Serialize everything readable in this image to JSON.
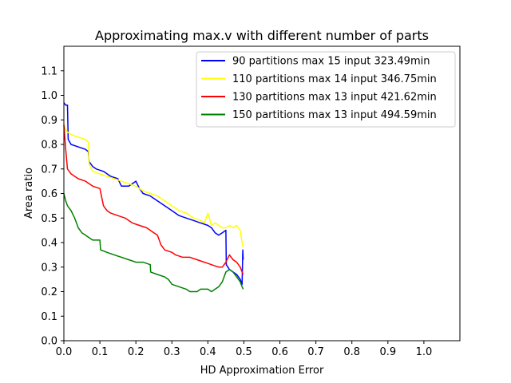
{
  "chart_data": {
    "type": "line",
    "title": "Approximating max.v with different number of parts",
    "xlabel": "HD Approximation Error",
    "ylabel": "Area ratio",
    "xlim": [
      0.0,
      1.1
    ],
    "ylim": [
      0.0,
      1.2
    ],
    "xticks": [
      0.0,
      0.1,
      0.2,
      0.3,
      0.4,
      0.5,
      0.6,
      0.7,
      0.8,
      0.9,
      1.0
    ],
    "yticks": [
      0.0,
      0.1,
      0.2,
      0.3,
      0.4,
      0.5,
      0.6,
      0.7,
      0.8,
      0.9,
      1.0,
      1.1
    ],
    "xtick_labels": [
      "0.0",
      "0.1",
      "0.2",
      "0.3",
      "0.4",
      "0.5",
      "0.6",
      "0.7",
      "0.8",
      "0.9",
      "1.0"
    ],
    "ytick_labels": [
      "0.0",
      "0.1",
      "0.2",
      "0.3",
      "0.4",
      "0.5",
      "0.6",
      "0.7",
      "0.8",
      "0.9",
      "1.0",
      "1.1"
    ],
    "legend_position": "top-right",
    "grid": false,
    "series": [
      {
        "name": "90 partitions max 15 input 323.49min",
        "color": "#0000ff",
        "points": [
          [
            0.0,
            0.97
          ],
          [
            0.005,
            0.96
          ],
          [
            0.01,
            0.96
          ],
          [
            0.012,
            0.82
          ],
          [
            0.02,
            0.8
          ],
          [
            0.04,
            0.79
          ],
          [
            0.06,
            0.78
          ],
          [
            0.068,
            0.77
          ],
          [
            0.07,
            0.73
          ],
          [
            0.08,
            0.71
          ],
          [
            0.09,
            0.7
          ],
          [
            0.11,
            0.69
          ],
          [
            0.13,
            0.67
          ],
          [
            0.15,
            0.66
          ],
          [
            0.16,
            0.63
          ],
          [
            0.18,
            0.63
          ],
          [
            0.19,
            0.64
          ],
          [
            0.2,
            0.65
          ],
          [
            0.21,
            0.62
          ],
          [
            0.22,
            0.6
          ],
          [
            0.24,
            0.59
          ],
          [
            0.26,
            0.57
          ],
          [
            0.28,
            0.55
          ],
          [
            0.3,
            0.53
          ],
          [
            0.32,
            0.51
          ],
          [
            0.34,
            0.5
          ],
          [
            0.36,
            0.49
          ],
          [
            0.38,
            0.48
          ],
          [
            0.4,
            0.47
          ],
          [
            0.41,
            0.46
          ],
          [
            0.42,
            0.44
          ],
          [
            0.43,
            0.43
          ],
          [
            0.44,
            0.44
          ],
          [
            0.45,
            0.45
          ],
          [
            0.451,
            0.31
          ],
          [
            0.46,
            0.29
          ],
          [
            0.47,
            0.28
          ],
          [
            0.48,
            0.27
          ],
          [
            0.49,
            0.25
          ],
          [
            0.495,
            0.23
          ],
          [
            0.497,
            0.37
          ],
          [
            0.498,
            0.33
          ]
        ]
      },
      {
        "name": "110 partitions max 14 input 346.75min",
        "color": "#ffff00",
        "points": [
          [
            0.0,
            0.88
          ],
          [
            0.005,
            0.86
          ],
          [
            0.01,
            0.85
          ],
          [
            0.02,
            0.84
          ],
          [
            0.04,
            0.83
          ],
          [
            0.06,
            0.82
          ],
          [
            0.068,
            0.81
          ],
          [
            0.07,
            0.72
          ],
          [
            0.08,
            0.69
          ],
          [
            0.1,
            0.68
          ],
          [
            0.12,
            0.67
          ],
          [
            0.14,
            0.66
          ],
          [
            0.16,
            0.65
          ],
          [
            0.18,
            0.64
          ],
          [
            0.2,
            0.63
          ],
          [
            0.22,
            0.61
          ],
          [
            0.24,
            0.6
          ],
          [
            0.26,
            0.59
          ],
          [
            0.28,
            0.57
          ],
          [
            0.3,
            0.55
          ],
          [
            0.32,
            0.53
          ],
          [
            0.34,
            0.52
          ],
          [
            0.36,
            0.5
          ],
          [
            0.38,
            0.49
          ],
          [
            0.39,
            0.48
          ],
          [
            0.4,
            0.52
          ],
          [
            0.41,
            0.47
          ],
          [
            0.42,
            0.48
          ],
          [
            0.43,
            0.47
          ],
          [
            0.44,
            0.46
          ],
          [
            0.45,
            0.46
          ],
          [
            0.46,
            0.47
          ],
          [
            0.47,
            0.46
          ],
          [
            0.48,
            0.47
          ],
          [
            0.49,
            0.45
          ],
          [
            0.495,
            0.4
          ],
          [
            0.498,
            0.38
          ]
        ]
      },
      {
        "name": "130 partitions max 13 input 421.62min",
        "color": "#ff0000",
        "points": [
          [
            0.0,
            0.88
          ],
          [
            0.005,
            0.78
          ],
          [
            0.01,
            0.7
          ],
          [
            0.02,
            0.68
          ],
          [
            0.04,
            0.66
          ],
          [
            0.06,
            0.65
          ],
          [
            0.08,
            0.63
          ],
          [
            0.1,
            0.62
          ],
          [
            0.11,
            0.55
          ],
          [
            0.12,
            0.53
          ],
          [
            0.13,
            0.52
          ],
          [
            0.15,
            0.51
          ],
          [
            0.17,
            0.5
          ],
          [
            0.19,
            0.48
          ],
          [
            0.21,
            0.47
          ],
          [
            0.23,
            0.46
          ],
          [
            0.25,
            0.44
          ],
          [
            0.26,
            0.43
          ],
          [
            0.27,
            0.39
          ],
          [
            0.28,
            0.37
          ],
          [
            0.3,
            0.36
          ],
          [
            0.31,
            0.35
          ],
          [
            0.33,
            0.34
          ],
          [
            0.35,
            0.34
          ],
          [
            0.37,
            0.33
          ],
          [
            0.39,
            0.32
          ],
          [
            0.41,
            0.31
          ],
          [
            0.43,
            0.3
          ],
          [
            0.44,
            0.3
          ],
          [
            0.45,
            0.32
          ],
          [
            0.46,
            0.35
          ],
          [
            0.47,
            0.33
          ],
          [
            0.48,
            0.32
          ],
          [
            0.49,
            0.3
          ],
          [
            0.495,
            0.28
          ],
          [
            0.498,
            0.27
          ]
        ]
      },
      {
        "name": "150 partitions max 13 input 494.59min",
        "color": "#008000",
        "points": [
          [
            0.0,
            0.6
          ],
          [
            0.005,
            0.57
          ],
          [
            0.01,
            0.55
          ],
          [
            0.02,
            0.53
          ],
          [
            0.03,
            0.5
          ],
          [
            0.04,
            0.46
          ],
          [
            0.05,
            0.44
          ],
          [
            0.06,
            0.43
          ],
          [
            0.07,
            0.42
          ],
          [
            0.08,
            0.41
          ],
          [
            0.1,
            0.41
          ],
          [
            0.102,
            0.37
          ],
          [
            0.12,
            0.36
          ],
          [
            0.14,
            0.35
          ],
          [
            0.16,
            0.34
          ],
          [
            0.18,
            0.33
          ],
          [
            0.2,
            0.32
          ],
          [
            0.22,
            0.32
          ],
          [
            0.24,
            0.31
          ],
          [
            0.241,
            0.28
          ],
          [
            0.26,
            0.27
          ],
          [
            0.28,
            0.26
          ],
          [
            0.29,
            0.25
          ],
          [
            0.3,
            0.23
          ],
          [
            0.32,
            0.22
          ],
          [
            0.34,
            0.21
          ],
          [
            0.35,
            0.2
          ],
          [
            0.37,
            0.2
          ],
          [
            0.38,
            0.21
          ],
          [
            0.4,
            0.21
          ],
          [
            0.41,
            0.2
          ],
          [
            0.42,
            0.21
          ],
          [
            0.43,
            0.22
          ],
          [
            0.44,
            0.24
          ],
          [
            0.45,
            0.28
          ],
          [
            0.46,
            0.29
          ],
          [
            0.47,
            0.28
          ],
          [
            0.48,
            0.26
          ],
          [
            0.49,
            0.24
          ],
          [
            0.495,
            0.22
          ],
          [
            0.498,
            0.21
          ]
        ]
      }
    ]
  }
}
